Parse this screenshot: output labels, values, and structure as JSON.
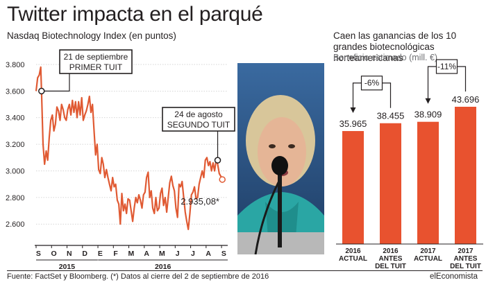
{
  "header": {
    "title": "Twitter impacta en el parqué",
    "subtitle": "Nasdaq Biotechnology Index (en puntos)"
  },
  "right_panel": {
    "title": "Caen las ganancias de los 10 grandes biotecnológicas norteamericanas",
    "subtitle": "Beneficio estimado (mill. €)"
  },
  "footer": {
    "source": "Fuente: FactSet y Bloomberg. (*) Datos al cierre del 2 de septiembre de 2016",
    "brand": "elEconomista"
  },
  "photo": {
    "subject": "speaker-at-microphone"
  },
  "colors": {
    "line": "#e05a33",
    "bar": "#e8522f",
    "text": "#231f20",
    "grid": "#c8c8c8",
    "axis": "#231f20"
  },
  "chart_data": [
    {
      "type": "line",
      "title": "Nasdaq Biotechnology Index (en puntos)",
      "ylim": [
        2450,
        3800
      ],
      "y_ticks": [
        "3.800",
        "3.600",
        "3.400",
        "3.200",
        "3.000",
        "2.800",
        "2.600"
      ],
      "y_tick_values": [
        3800,
        3600,
        3400,
        3200,
        3000,
        2800,
        2600
      ],
      "x_ticks": [
        "S",
        "O",
        "N",
        "D",
        "E",
        "F",
        "M",
        "A",
        "M",
        "J",
        "J",
        "A",
        "S"
      ],
      "x_tick_months": [
        0,
        1,
        2,
        3,
        4,
        5,
        6,
        7,
        8,
        9,
        10,
        11,
        12
      ],
      "year_labels": [
        {
          "label": "2015",
          "start_month": 0,
          "end_month": 3.99
        },
        {
          "label": "2016",
          "start_month": 4.01,
          "end_month": 12.4
        }
      ],
      "x_range_months": [
        0,
        12.4
      ],
      "series": [
        {
          "x": [
            0,
            0.1,
            0.2,
            0.3,
            0.35,
            0.45,
            0.55,
            0.65,
            0.75,
            0.85,
            0.95,
            1.05,
            1.15,
            1.25,
            1.35,
            1.45,
            1.55,
            1.65,
            1.75,
            1.85,
            1.95,
            2.05,
            2.15,
            2.25,
            2.35,
            2.45,
            2.55,
            2.65,
            2.75,
            2.85,
            2.95,
            3.05,
            3.15,
            3.25,
            3.35,
            3.45,
            3.55,
            3.65,
            3.75,
            3.85,
            3.95,
            4.05,
            4.15,
            4.25,
            4.35,
            4.45,
            4.55,
            4.65,
            4.75,
            4.85,
            4.95,
            5.05,
            5.15,
            5.25,
            5.35,
            5.45,
            5.55,
            5.65,
            5.75,
            5.85,
            5.95,
            6.05,
            6.15,
            6.25,
            6.35,
            6.45,
            6.55,
            6.65,
            6.75,
            6.85,
            6.95,
            7.05,
            7.15,
            7.25,
            7.35,
            7.45,
            7.55,
            7.65,
            7.75,
            7.85,
            7.95,
            8.05,
            8.15,
            8.25,
            8.35,
            8.45,
            8.55,
            8.65,
            8.75,
            8.85,
            8.95,
            9.05,
            9.15,
            9.25,
            9.35,
            9.45,
            9.55,
            9.65,
            9.75,
            9.85,
            9.95,
            10.05,
            10.15,
            10.25,
            10.35,
            10.45,
            10.55,
            10.65,
            10.75,
            10.85,
            10.95,
            11.05,
            11.15,
            11.25,
            11.35,
            11.45,
            11.55,
            11.65,
            11.75,
            11.85,
            11.95,
            12.05
          ],
          "y": [
            3600,
            3700,
            3720,
            3780,
            3600,
            3200,
            3050,
            3150,
            3080,
            3250,
            3380,
            3420,
            3300,
            3350,
            3480,
            3450,
            3380,
            3500,
            3460,
            3400,
            3380,
            3460,
            3500,
            3420,
            3530,
            3440,
            3520,
            3400,
            3520,
            3420,
            3550,
            3380,
            3420,
            3450,
            3500,
            3560,
            3440,
            3500,
            3300,
            3120,
            3200,
            3010,
            2980,
            3100,
            3050,
            2950,
            3010,
            2950,
            2900,
            2850,
            2950,
            2880,
            2900,
            2780,
            2750,
            2600,
            2830,
            2700,
            2750,
            2680,
            2790,
            2780,
            2700,
            2620,
            2720,
            2800,
            2760,
            2820,
            2780,
            2720,
            2820,
            2840,
            2950,
            2990,
            2800,
            2850,
            2720,
            2680,
            2800,
            2700,
            2720,
            2830,
            2870,
            2740,
            2800,
            2690,
            2800,
            2910,
            2960,
            2890,
            2850,
            2720,
            2650,
            2900,
            2880,
            2920,
            2800,
            2690,
            2620,
            2560,
            2680,
            2820,
            2840,
            2880,
            2790,
            2800,
            2900,
            2950,
            3000,
            2950,
            3080,
            3100,
            3040,
            3070,
            3000,
            3060,
            3000,
            3080,
            3050,
            2980,
            2960,
            2935
          ]
        }
      ],
      "annotations": [
        {
          "label_line1": "21 de septiembre",
          "label_line2": "PRIMER TUIT",
          "x": 0.35,
          "y": 3600
        },
        {
          "label_line1": "24 de agosto",
          "label_line2": "SEGUNDO TUIT",
          "x": 11.75,
          "y": 3080
        }
      ],
      "end_label": "2.935,08*",
      "end_point": {
        "x": 12.05,
        "y": 2935
      }
    },
    {
      "type": "bar",
      "title": "Caen las ganancias de los 10 grandes biotecnológicas norteamericanas",
      "ylabel": "Beneficio estimado (mill. €)",
      "ylim": [
        0,
        43696
      ],
      "categories": [
        [
          "2016",
          "ACTUAL"
        ],
        [
          "2016",
          "ANTES",
          "DEL TUIT"
        ],
        [
          "2017",
          "ACTUAL"
        ],
        [
          "2017",
          "ANTES",
          "DEL TUIT"
        ]
      ],
      "values": [
        35965,
        38455,
        38909,
        43696
      ],
      "value_labels": [
        "35.965",
        "38.455",
        "38.909",
        "43.696"
      ],
      "comparisons": [
        {
          "label": "-6%",
          "from_index": 1,
          "to_index": 0
        },
        {
          "label": "-11%",
          "from_index": 3,
          "to_index": 2
        }
      ]
    }
  ]
}
